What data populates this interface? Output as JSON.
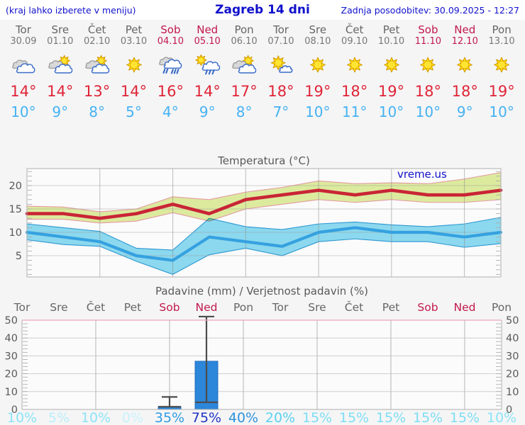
{
  "header": {
    "left_note": "(kraj lahko izberete v meniju)",
    "title": "Zagreb 14 dni",
    "updated": "Zadnja posodobitev: 30.09.2025 - 12:27"
  },
  "colors": {
    "link_blue": "#1111cc",
    "weekday_gray": "#666666",
    "weekend_red": "#c2184b",
    "tmax_red": "#e02537",
    "tmin_blue": "#45b2f2",
    "max_line": "#c92536",
    "max_band": "#dcea9e",
    "max_band_edge": "#e49aa2",
    "min_line": "#35a1e0",
    "min_band": "#8edcf2",
    "min_band_edge": "#2d9ad6",
    "bar_blue": "#2c86d9",
    "whisker_gray": "#4d4d4d",
    "axis_text": "#595959"
  },
  "forecast": {
    "days": [
      {
        "name": "Tor",
        "date": "30.09",
        "weekend": false,
        "icon": "cloudy",
        "tmax": "14°",
        "tmin": "10°"
      },
      {
        "name": "Sre",
        "date": "01.10",
        "weekend": false,
        "icon": "sun-cloud",
        "tmax": "14°",
        "tmin": "9°"
      },
      {
        "name": "Čet",
        "date": "02.10",
        "weekend": false,
        "icon": "sun-cloud",
        "tmax": "13°",
        "tmin": "8°"
      },
      {
        "name": "Pet",
        "date": "03.10",
        "weekend": false,
        "icon": "sunny",
        "tmax": "14°",
        "tmin": "5°"
      },
      {
        "name": "Sob",
        "date": "04.10",
        "weekend": true,
        "icon": "rain",
        "tmax": "16°",
        "tmin": "4°"
      },
      {
        "name": "Ned",
        "date": "05.10",
        "weekend": true,
        "icon": "sun-rain",
        "tmax": "14°",
        "tmin": "9°"
      },
      {
        "name": "Pon",
        "date": "06.10",
        "weekend": false,
        "icon": "sun-cloud",
        "tmax": "17°",
        "tmin": "8°"
      },
      {
        "name": "Tor",
        "date": "07.10",
        "weekend": false,
        "icon": "sun-small-cloud",
        "tmax": "18°",
        "tmin": "7°"
      },
      {
        "name": "Sre",
        "date": "08.10",
        "weekend": false,
        "icon": "sunny",
        "tmax": "19°",
        "tmin": "10°"
      },
      {
        "name": "Čet",
        "date": "09.10",
        "weekend": false,
        "icon": "sunny",
        "tmax": "18°",
        "tmin": "11°"
      },
      {
        "name": "Pet",
        "date": "10.10",
        "weekend": false,
        "icon": "sunny",
        "tmax": "19°",
        "tmin": "10°"
      },
      {
        "name": "Sob",
        "date": "11.10",
        "weekend": true,
        "icon": "sunny",
        "tmax": "18°",
        "tmin": "10°"
      },
      {
        "name": "Ned",
        "date": "12.10",
        "weekend": true,
        "icon": "sunny",
        "tmax": "18°",
        "tmin": "9°"
      },
      {
        "name": "Pon",
        "date": "13.10",
        "weekend": false,
        "icon": "sunny",
        "tmax": "19°",
        "tmin": "10°"
      }
    ]
  },
  "chart_data": [
    {
      "type": "area",
      "title": "Temperatura (°C)",
      "watermark": "vreme.us",
      "categories": [
        "30.09",
        "01.10",
        "02.10",
        "03.10",
        "04.10",
        "05.10",
        "06.10",
        "07.10",
        "08.10",
        "09.10",
        "10.10",
        "11.10",
        "12.10",
        "13.10"
      ],
      "yticks": [
        5,
        10,
        15,
        20
      ],
      "ylim": [
        0.5,
        23.5
      ],
      "grid_day_indices": [
        2,
        4,
        6,
        8,
        10,
        12
      ],
      "series": [
        {
          "name": "tmax",
          "values": [
            14,
            14,
            13,
            14,
            16,
            14,
            17,
            18,
            19,
            18,
            19,
            18,
            18,
            19
          ]
        },
        {
          "name": "tmax_upper",
          "values": [
            15.6,
            15.4,
            14.4,
            15.0,
            17.6,
            17.0,
            18.6,
            19.6,
            21.0,
            20.4,
            20.6,
            20.4,
            21.4,
            22.8
          ]
        },
        {
          "name": "tmax_lower",
          "values": [
            12.8,
            12.8,
            12.0,
            12.4,
            14.2,
            12.4,
            15.0,
            16.0,
            17.0,
            16.4,
            17.0,
            16.4,
            16.4,
            17.0
          ]
        },
        {
          "name": "tmin",
          "values": [
            10,
            9,
            8,
            5,
            4,
            9,
            8,
            7,
            10,
            11,
            10,
            10,
            9,
            10
          ]
        },
        {
          "name": "tmin_upper",
          "values": [
            11.8,
            11.0,
            10.2,
            6.6,
            6.2,
            13.0,
            11.2,
            10.6,
            11.8,
            12.2,
            11.6,
            11.2,
            11.8,
            13.2
          ]
        },
        {
          "name": "tmin_lower",
          "values": [
            8.4,
            7.4,
            7.0,
            3.8,
            1.0,
            5.2,
            6.6,
            5.0,
            8.0,
            8.6,
            8.0,
            8.0,
            6.8,
            7.6
          ]
        }
      ]
    },
    {
      "type": "bar",
      "title": "Padavine (mm) / Verjetnost padavin (%)",
      "categories": [
        "Tor",
        "Sre",
        "Čet",
        "Pet",
        "Sob",
        "Ned",
        "Pon",
        "Tor",
        "Sre",
        "Čet",
        "Pet",
        "Sob",
        "Ned",
        "Pon"
      ],
      "weekend_indices": [
        4,
        5,
        11,
        12
      ],
      "precip_mm": [
        0,
        0,
        0,
        0,
        1.5,
        27,
        0,
        0,
        0,
        0,
        0,
        0,
        0,
        0
      ],
      "whisker_low": [
        null,
        null,
        null,
        null,
        1.5,
        4,
        null,
        null,
        null,
        null,
        null,
        null,
        null,
        null
      ],
      "whisker_high": [
        null,
        null,
        null,
        null,
        7,
        52,
        null,
        null,
        null,
        null,
        null,
        null,
        null,
        null
      ],
      "probability_pct": [
        "10%",
        "5%",
        "10%",
        "0%",
        "35%",
        "75%",
        "40%",
        "20%",
        "15%",
        "15%",
        "15%",
        "15%",
        "15%",
        "10%"
      ],
      "prob_colors": [
        "#8ce4f6",
        "#b9eefa",
        "#8ce4f6",
        "#c9f2fb",
        "#2f9ce1",
        "#1f33c4",
        "#2d93dd",
        "#5bd2f0",
        "#7ddef3",
        "#7ddef3",
        "#7ddef3",
        "#7ddef3",
        "#7ddef3",
        "#8ce4f6"
      ],
      "yticks": [
        0,
        10,
        20,
        30,
        40,
        50
      ],
      "ylim": [
        0,
        52
      ]
    }
  ]
}
